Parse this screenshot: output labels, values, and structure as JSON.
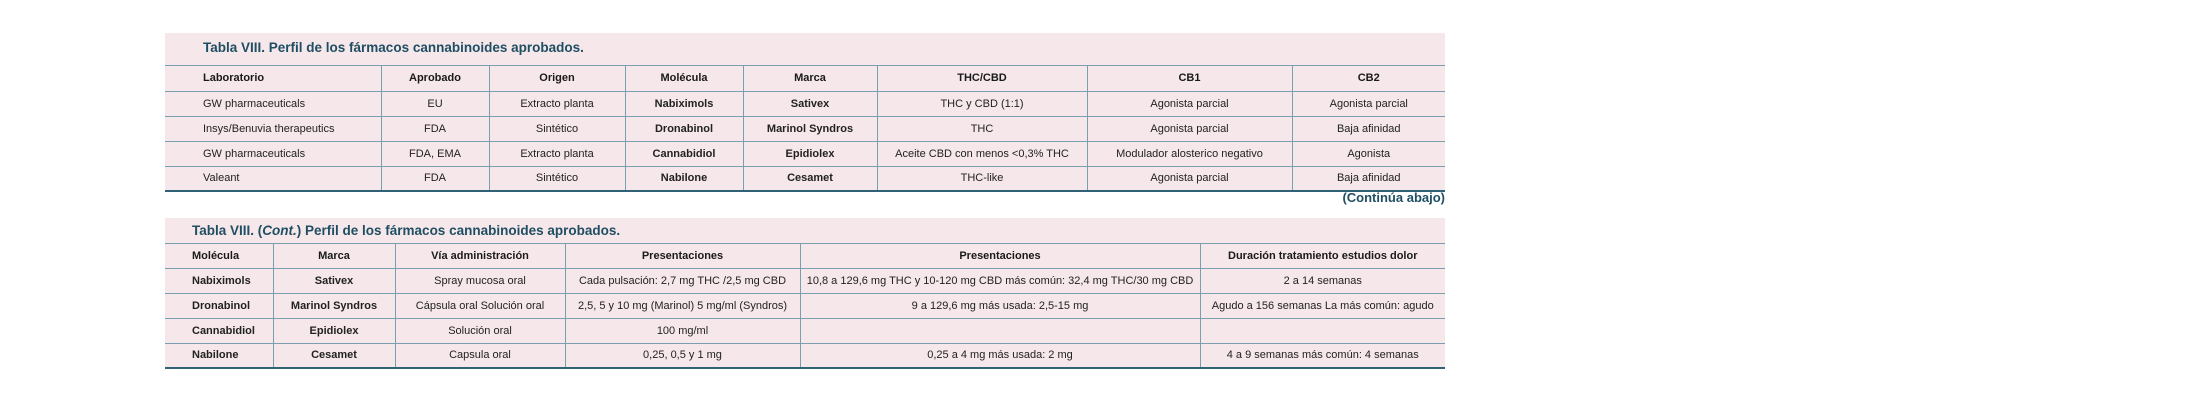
{
  "table1": {
    "caption": "Tabla VIII. Perfil de los fármacos cannabinoides aprobados.",
    "headers": [
      "Laboratorio",
      "Aprobado",
      "Origen",
      "Molécula",
      "Marca",
      "THC/CBD",
      "CB1",
      "CB2"
    ],
    "rows": [
      [
        "GW pharmaceuticals",
        "EU",
        "Extracto planta",
        "Nabiximols",
        "Sativex",
        "THC y CBD (1:1)",
        "Agonista parcial",
        "Agonista parcial"
      ],
      [
        "Insys/Benuvia therapeutics",
        "FDA",
        "Sintético",
        "Dronabinol",
        "Marinol Syndros",
        "THC",
        "Agonista parcial",
        "Baja afinidad"
      ],
      [
        "GW pharmaceuticals",
        "FDA, EMA",
        "Extracto planta",
        "Cannabidiol",
        "Epidiolex",
        "Aceite CBD con menos <0,3% THC",
        "Modulador alosterico negativo",
        "Agonista"
      ],
      [
        "Valeant",
        "FDA",
        "Sintético",
        "Nabilone",
        "Cesamet",
        "THC-like",
        "Agonista parcial",
        "Baja afinidad"
      ]
    ]
  },
  "continue_label": "(Continúa abajo)",
  "table2": {
    "caption_prefix": "Tabla VIII. (",
    "caption_italic": "Cont.",
    "caption_suffix": ") Perfil de los fármacos cannabinoides aprobados.",
    "headers": [
      "Molécula",
      "Marca",
      "Vía administración",
      "Presentaciones",
      "Presentaciones",
      "Duración tratamiento estudios dolor"
    ],
    "rows": [
      [
        "Nabiximols",
        "Sativex",
        "Spray mucosa oral",
        "Cada pulsación: 2,7 mg THC /2,5 mg CBD",
        "10,8 a 129,6 mg THC y 10-120 mg CBD más común: 32,4 mg THC/30 mg CBD",
        "2 a 14 semanas"
      ],
      [
        "Dronabinol",
        "Marinol Syndros",
        "Cápsula oral Solución oral",
        "2,5, 5 y 10 mg (Marinol) 5 mg/ml (Syndros)",
        "9 a 129,6 mg más usada: 2,5-15 mg",
        "Agudo a 156 semanas La más común: agudo"
      ],
      [
        "Cannabidiol",
        "Epidiolex",
        "Solución oral",
        "100 mg/ml",
        "",
        ""
      ],
      [
        "Nabilone",
        "Cesamet",
        "Capsula oral",
        "0,25, 0,5 y 1 mg",
        "0,25 a 4 mg más usada: 2 mg",
        "4 a 9 semanas más común: 4 semanas"
      ]
    ]
  }
}
